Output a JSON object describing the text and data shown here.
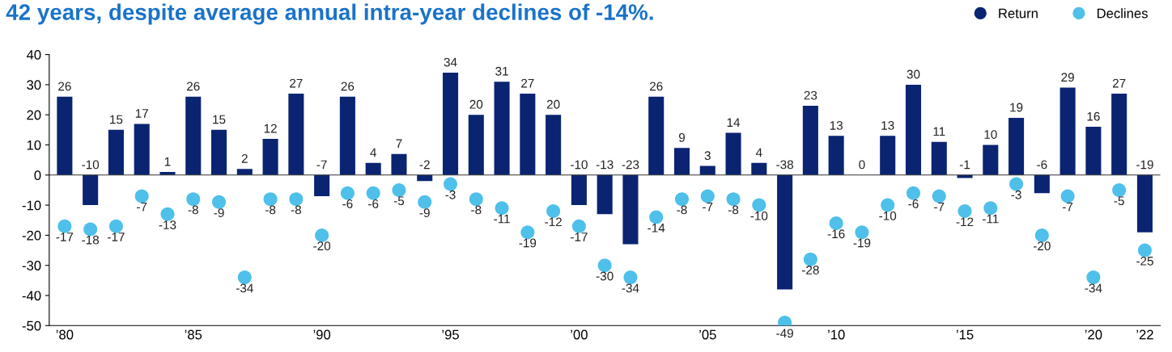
{
  "chart_data": {
    "type": "bar",
    "title": "42 years, despite average annual intra-year declines of -14%.",
    "categories": [
      "’80",
      null,
      null,
      null,
      null,
      "’85",
      null,
      null,
      null,
      null,
      "’90",
      null,
      null,
      null,
      null,
      "’95",
      null,
      null,
      null,
      null,
      "’00",
      null,
      null,
      null,
      null,
      "’05",
      null,
      null,
      null,
      null,
      "’10",
      null,
      null,
      null,
      null,
      "’15",
      null,
      null,
      null,
      null,
      "’20",
      null,
      "’22"
    ],
    "series": [
      {
        "name": "Return",
        "color": "#0a2472",
        "values": [
          26,
          -10,
          15,
          17,
          1,
          26,
          15,
          2,
          12,
          27,
          -7,
          26,
          4,
          7,
          -2,
          34,
          20,
          31,
          27,
          20,
          -10,
          -13,
          -23,
          26,
          9,
          3,
          14,
          4,
          -38,
          23,
          13,
          0,
          13,
          30,
          11,
          -1,
          10,
          19,
          -6,
          29,
          16,
          27,
          -19
        ]
      },
      {
        "name": "Declines",
        "type": "scatter",
        "color": "#4ec0ea",
        "marker": "circle",
        "values": [
          -17,
          -18,
          -17,
          -7,
          -13,
          -8,
          -9,
          -34,
          -8,
          -8,
          -20,
          -6,
          -6,
          -5,
          -9,
          -3,
          -8,
          -11,
          -19,
          -12,
          -17,
          -30,
          -34,
          -14,
          -8,
          -7,
          -8,
          -10,
          -49,
          -28,
          -16,
          -19,
          -10,
          -6,
          -7,
          -12,
          -11,
          -3,
          -20,
          -7,
          -34,
          -5,
          -25
        ]
      }
    ],
    "ylim": [
      -50,
      40
    ],
    "yticks": [
      -50,
      -40,
      -30,
      -20,
      -10,
      0,
      10,
      20,
      30,
      40
    ],
    "ref_lines": [
      {
        "axis": "y",
        "value": 0,
        "color": "#333333"
      }
    ],
    "data_labels": true,
    "legend": "top right",
    "grid": false
  }
}
